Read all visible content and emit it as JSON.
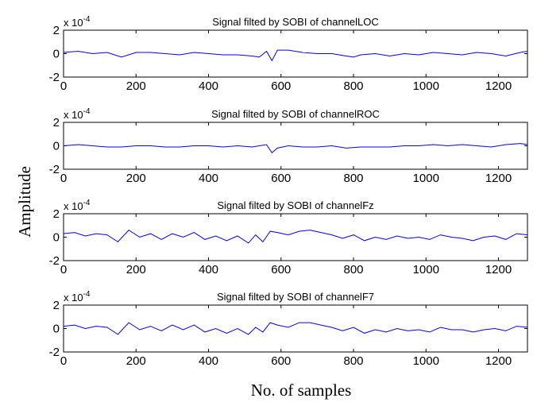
{
  "figure": {
    "ylabel": "Amplitude",
    "xlabel": "No. of samples"
  },
  "chart_data": [
    {
      "type": "line",
      "title": "Signal filted by SOBI of channelLOC",
      "xlim": [
        0,
        1280
      ],
      "ylim": [
        -2,
        2
      ],
      "y_multiplier": "x 10",
      "y_multiplier_exp": "-4",
      "xticks": [
        0,
        200,
        400,
        600,
        800,
        1000,
        1200
      ],
      "yticks": [
        -2,
        0,
        2
      ],
      "color": "#0000ff",
      "series": [
        {
          "x": [
            0,
            40,
            80,
            120,
            160,
            200,
            240,
            280,
            320,
            360,
            400,
            440,
            480,
            520,
            540,
            560,
            575,
            590,
            620,
            660,
            700,
            740,
            780,
            800,
            820,
            860,
            900,
            940,
            980,
            1020,
            1060,
            1100,
            1140,
            1180,
            1220,
            1260,
            1280
          ],
          "values": [
            0.1,
            0.2,
            0,
            0.1,
            -0.3,
            0.1,
            0.1,
            0,
            -0.1,
            0.1,
            0,
            -0.1,
            -0.1,
            -0.2,
            -0.3,
            0.2,
            -0.6,
            0.3,
            0.3,
            0.1,
            0,
            0,
            -0.2,
            -0.3,
            -0.1,
            0,
            -0.2,
            0,
            -0.1,
            0.1,
            0,
            -0.1,
            0.1,
            0,
            -0.2,
            0.1,
            0.2
          ]
        }
      ]
    },
    {
      "type": "line",
      "title": "Signal filted by SOBI of channelROC",
      "xlim": [
        0,
        1280
      ],
      "ylim": [
        -2,
        2
      ],
      "y_multiplier": "x 10",
      "y_multiplier_exp": "-4",
      "xticks": [
        0,
        200,
        400,
        600,
        800,
        1000,
        1200
      ],
      "yticks": [
        -2,
        0,
        2
      ],
      "color": "#0000ff",
      "series": [
        {
          "x": [
            0,
            40,
            80,
            120,
            160,
            200,
            240,
            280,
            320,
            360,
            400,
            440,
            480,
            520,
            560,
            575,
            590,
            620,
            660,
            700,
            740,
            780,
            820,
            860,
            900,
            940,
            980,
            1020,
            1060,
            1100,
            1140,
            1180,
            1220,
            1260,
            1280
          ],
          "values": [
            0,
            0.1,
            0,
            -0.1,
            -0.1,
            0,
            0,
            -0.1,
            -0.1,
            0,
            0,
            -0.1,
            0,
            -0.1,
            0.1,
            -0.6,
            -0.2,
            0,
            -0.1,
            -0.1,
            0,
            -0.2,
            -0.1,
            -0.1,
            -0.1,
            0,
            0,
            0.1,
            0,
            0.1,
            0,
            -0.1,
            0.1,
            0.2,
            0.1
          ]
        }
      ]
    },
    {
      "type": "line",
      "title": "Signal filted by SOBI of channelFz",
      "xlim": [
        0,
        1280
      ],
      "ylim": [
        -2,
        2
      ],
      "y_multiplier": "x 10",
      "y_multiplier_exp": "-4",
      "xticks": [
        0,
        200,
        400,
        600,
        800,
        1000,
        1200
      ],
      "yticks": [
        -2,
        0,
        2
      ],
      "color": "#0000ff",
      "series": [
        {
          "x": [
            0,
            30,
            60,
            90,
            120,
            150,
            180,
            210,
            240,
            270,
            300,
            330,
            360,
            390,
            420,
            450,
            480,
            510,
            530,
            550,
            570,
            590,
            620,
            650,
            680,
            710,
            740,
            770,
            800,
            830,
            860,
            890,
            920,
            950,
            980,
            1010,
            1040,
            1070,
            1100,
            1130,
            1160,
            1190,
            1220,
            1250,
            1280
          ],
          "values": [
            0.3,
            0.4,
            0.1,
            0.3,
            0.2,
            -0.4,
            0.6,
            0,
            0.3,
            -0.2,
            0.3,
            0,
            0.4,
            -0.2,
            0.1,
            -0.3,
            0.1,
            -0.5,
            0.2,
            -0.4,
            0.5,
            0.4,
            0.2,
            0.5,
            0.6,
            0.4,
            0.2,
            -0.1,
            0.2,
            -0.3,
            0,
            -0.2,
            0.1,
            -0.1,
            0,
            -0.2,
            0.2,
            0,
            -0.1,
            -0.3,
            0,
            0.1,
            -0.2,
            0.3,
            0.2
          ]
        }
      ]
    },
    {
      "type": "line",
      "title": "Signal filted by SOBI of channelF7",
      "xlim": [
        0,
        1280
      ],
      "ylim": [
        -2,
        2
      ],
      "y_multiplier": "x 10",
      "y_multiplier_exp": "-4",
      "xticks": [
        0,
        200,
        400,
        600,
        800,
        1000,
        1200
      ],
      "yticks": [
        -2,
        0,
        2
      ],
      "color": "#0000ff",
      "series": [
        {
          "x": [
            0,
            30,
            60,
            90,
            120,
            150,
            180,
            210,
            240,
            270,
            300,
            330,
            360,
            390,
            420,
            450,
            480,
            510,
            530,
            550,
            570,
            590,
            620,
            650,
            680,
            710,
            740,
            770,
            800,
            830,
            860,
            890,
            920,
            950,
            980,
            1010,
            1040,
            1070,
            1100,
            1130,
            1160,
            1190,
            1220,
            1250,
            1280
          ],
          "values": [
            0.2,
            0.3,
            0,
            0.2,
            0.1,
            -0.5,
            0.5,
            -0.1,
            0.2,
            -0.2,
            0.3,
            -0.1,
            0.3,
            -0.3,
            0,
            -0.4,
            0,
            -0.5,
            0.1,
            -0.3,
            0.5,
            0.3,
            0.1,
            0.5,
            0.5,
            0.3,
            0.1,
            -0.2,
            0.1,
            -0.4,
            -0.1,
            -0.3,
            0,
            -0.2,
            -0.1,
            -0.3,
            0.1,
            -0.1,
            -0.1,
            -0.3,
            -0.1,
            0,
            -0.2,
            0.2,
            0.1
          ]
        }
      ]
    }
  ]
}
